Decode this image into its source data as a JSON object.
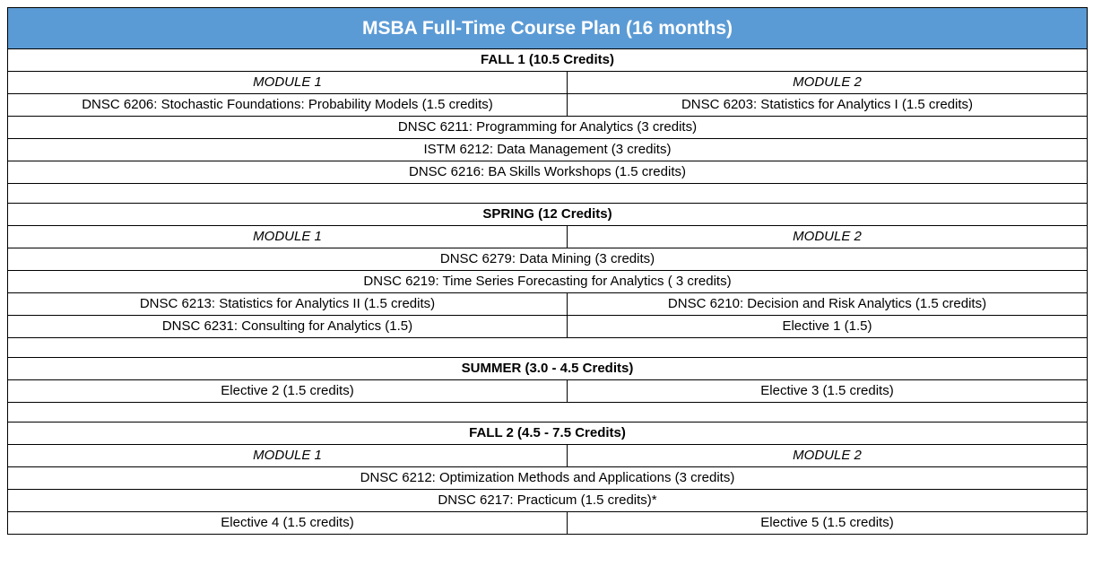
{
  "title": "MSBA Full-Time Course Plan (16 months)",
  "terms": {
    "fall1": {
      "heading": "FALL 1 (10.5 Credits)",
      "module1": "MODULE 1",
      "module2": "MODULE 2",
      "row1_left": "DNSC 6206: Stochastic Foundations: Probability Models (1.5 credits)",
      "row1_right": "DNSC 6203: Statistics for Analytics I (1.5 credits)",
      "row2": "DNSC 6211: Programming for Analytics (3 credits)",
      "row3": "ISTM 6212: Data Management (3 credits)",
      "row4": "DNSC 6216: BA Skills Workshops (1.5 credits)"
    },
    "spring": {
      "heading": "SPRING (12 Credits)",
      "module1": "MODULE 1",
      "module2": "MODULE 2",
      "row1": "DNSC 6279: Data Mining (3 credits)",
      "row2": "DNSC 6219: Time Series Forecasting for Analytics ( 3 credits)",
      "row3_left": "DNSC 6213: Statistics for Analytics II (1.5 credits)",
      "row3_right": "DNSC 6210: Decision and Risk Analytics (1.5 credits)",
      "row4_left": "DNSC 6231: Consulting for Analytics (1.5)",
      "row4_right": "Elective 1 (1.5)"
    },
    "summer": {
      "heading": "SUMMER (3.0 - 4.5 Credits)",
      "row1_left": "Elective 2 (1.5 credits)",
      "row1_right": "Elective 3 (1.5 credits)"
    },
    "fall2": {
      "heading": "FALL 2 (4.5 - 7.5 Credits)",
      "module1": "MODULE 1",
      "module2": "MODULE 2",
      "row1": "DNSC 6212: Optimization Methods and Applications (3 credits)",
      "row2": "DNSC 6217: Practicum (1.5 credits)*",
      "row3_left": "Elective 4 (1.5 credits)",
      "row3_right": "Elective 5 (1.5 credits)"
    }
  },
  "colors": {
    "title_background": "#5b9bd5",
    "title_text": "#ffffff",
    "border": "#000000"
  }
}
